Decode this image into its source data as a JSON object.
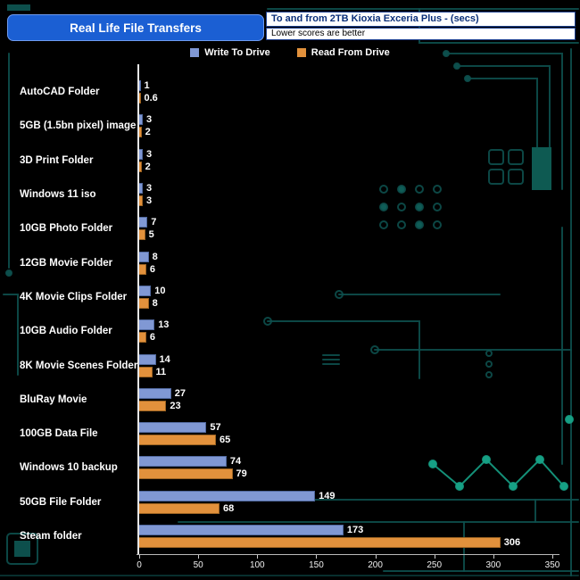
{
  "header": {
    "title": "Real Life File Transfers",
    "subtitle": "To and from 2TB Kioxia Exceria Plus - (secs)",
    "note": "Lower scores are better"
  },
  "legend": [
    {
      "label": "Write To  Drive",
      "color": "#8098d4"
    },
    {
      "label": "Read From  Drive",
      "color": "#e2913c"
    }
  ],
  "chart_data": {
    "type": "bar",
    "orientation": "horizontal",
    "title": "Real Life File Transfers",
    "subtitle": "To and from 2TB Kioxia Exceria Plus - (secs)",
    "note": "Lower scores are better",
    "categories": [
      "AutoCAD Folder",
      "5GB (1.5bn pixel) image",
      "3D Print Folder",
      "Windows 11 iso",
      "10GB Photo Folder",
      "12GB Movie Folder",
      "4K Movie Clips Folder",
      "10GB Audio Folder",
      "8K Movie Scenes Folder",
      "BluRay Movie",
      "100GB Data File",
      "Windows 10 backup",
      "50GB File Folder",
      "Steam folder"
    ],
    "series": [
      {
        "name": "Write To Drive",
        "color": "#8098d4",
        "values": [
          1,
          3,
          3,
          3,
          7,
          8,
          10,
          13,
          14,
          27,
          57,
          74,
          149,
          173
        ]
      },
      {
        "name": "Read From Drive",
        "color": "#e2913c",
        "values": [
          0.6,
          2,
          2,
          3,
          5,
          6,
          8,
          6,
          11,
          23,
          65,
          79,
          68,
          306
        ]
      }
    ],
    "xlabel": "seconds",
    "xlim": [
      0,
      350
    ],
    "xticks": [
      0,
      50,
      100,
      150,
      200,
      250,
      300,
      350
    ],
    "value_labels": true,
    "legend_position": "top"
  },
  "colors": {
    "background": "#000000",
    "title_box": "#1b5fd3",
    "write_bar": "#8098d4",
    "read_bar": "#e2913c",
    "circuit_trace": "#0d4f4c",
    "circuit_accent": "#16a085",
    "axis": "#e6e6e6",
    "text": "#ffffff"
  }
}
